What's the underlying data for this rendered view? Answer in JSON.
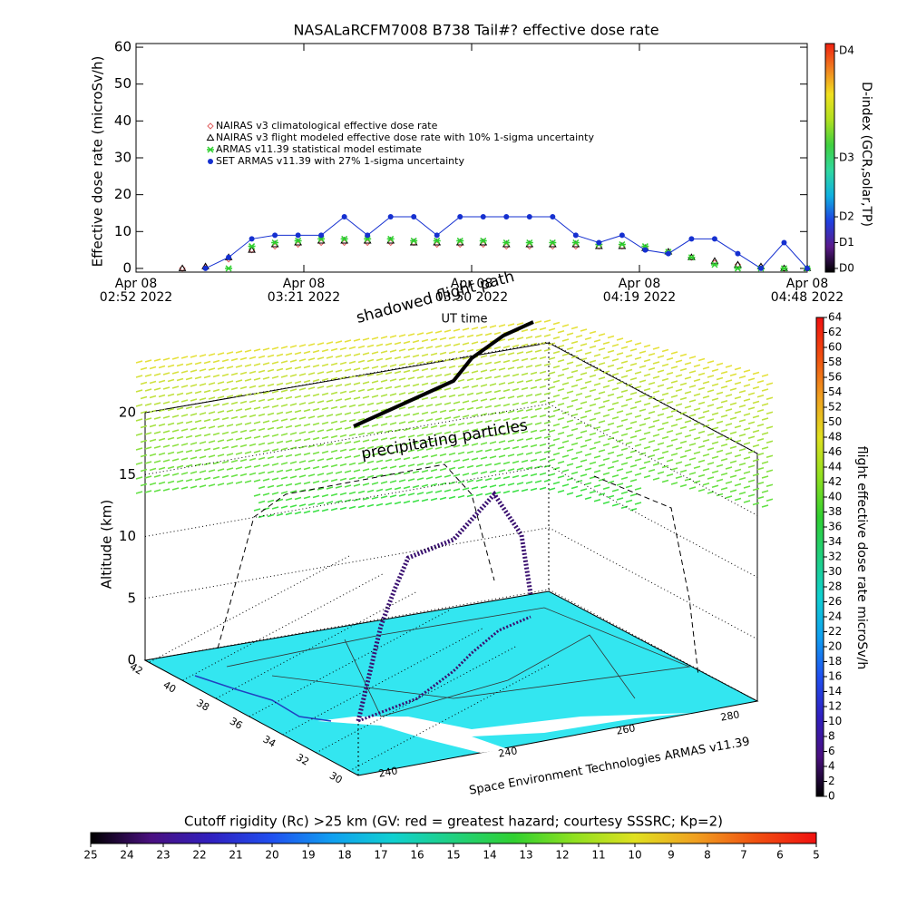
{
  "chart_data": [
    {
      "type": "line",
      "title": "NASALaRCFM7008  B738 Tail#? effective dose rate",
      "x_label": "UT time",
      "y_label": "Effective dose rate (microSv/h)",
      "x": [
        "2022-04-08 03:00",
        "2022-04-08 03:04",
        "2022-04-08 03:08",
        "2022-04-08 03:12",
        "2022-04-08 03:16",
        "2022-04-08 03:20",
        "2022-04-08 03:24",
        "2022-04-08 03:28",
        "2022-04-08 03:32",
        "2022-04-08 03:36",
        "2022-04-08 03:40",
        "2022-04-08 03:44",
        "2022-04-08 03:48",
        "2022-04-08 03:52",
        "2022-04-08 03:56",
        "2022-04-08 04:00",
        "2022-04-08 04:04",
        "2022-04-08 04:08",
        "2022-04-08 04:12",
        "2022-04-08 04:16",
        "2022-04-08 04:20",
        "2022-04-08 04:24",
        "2022-04-08 04:28",
        "2022-04-08 04:32",
        "2022-04-08 04:36",
        "2022-04-08 04:40",
        "2022-04-08 04:44",
        "2022-04-08 04:48"
      ],
      "series": [
        {
          "name": "NAIRAS v3 climatological effective dose rate",
          "color": "#e06060",
          "marker": "diamond",
          "values": [
            0,
            0.3,
            2.5,
            5,
            6,
            6.5,
            7,
            7,
            7,
            7,
            7,
            6.5,
            6.5,
            6.5,
            6,
            6,
            6,
            6,
            6,
            6,
            5.5,
            4.5,
            3,
            1.5,
            1,
            0.5,
            0,
            0
          ]
        },
        {
          "name": "NAIRAS v3 flight modeled effective dose rate with 10% 1-sigma uncertainty",
          "color": "#000000",
          "marker": "triangle",
          "values": [
            0,
            0.5,
            3,
            5,
            6.5,
            7,
            7.5,
            7.5,
            7.5,
            7.5,
            7,
            7,
            7,
            7,
            6.5,
            6.5,
            6.5,
            6.5,
            6,
            6,
            5.5,
            4.5,
            3,
            2,
            1,
            0.5,
            0,
            0
          ]
        },
        {
          "name": "ARMAS v11.39 statistical model estimate",
          "color": "#30d030",
          "marker": "star",
          "values": [
            null,
            null,
            0,
            6,
            7,
            7.5,
            8,
            8,
            8,
            8,
            7.5,
            7.5,
            7.5,
            7.5,
            7,
            7,
            7,
            7,
            6.5,
            6.5,
            6,
            4.5,
            3,
            1,
            0,
            0,
            0,
            0
          ]
        },
        {
          "name": "SET ARMAS v11.39 with 27% 1-sigma uncertainty",
          "color": "#1530d0",
          "marker": "circle",
          "line": true,
          "values": [
            null,
            0,
            3,
            8,
            9,
            9,
            9,
            14,
            9,
            14,
            14,
            9,
            14,
            14,
            14,
            14,
            14,
            9,
            7,
            9,
            5,
            4,
            8,
            8,
            4,
            0,
            7,
            0
          ]
        }
      ],
      "xlim": [
        "2022-04-08 02:52",
        "2022-04-08 04:48"
      ],
      "xticks": [
        {
          "value": "2022-04-08 02:52",
          "label": "Apr 08\n02:52 2022"
        },
        {
          "value": "2022-04-08 03:21",
          "label": "Apr 08\n03:21 2022"
        },
        {
          "value": "2022-04-08 03:50",
          "label": "Apr 08\n03:50 2022"
        },
        {
          "value": "2022-04-08 04:19",
          "label": "Apr 08\n04:19 2022"
        },
        {
          "value": "2022-04-08 04:48",
          "label": "Apr 08\n04:48 2022"
        }
      ],
      "ylim": [
        -1,
        61
      ],
      "yticks": [
        0,
        10,
        20,
        30,
        40,
        50,
        60
      ]
    },
    {
      "type": "colorbar-v",
      "title": "D-index (GCR,solar,TP)",
      "ylim": [
        -1,
        61
      ],
      "yticks": [
        {
          "value": 0,
          "label": "D0"
        },
        {
          "value": 7,
          "label": "D1"
        },
        {
          "value": 14,
          "label": "D2"
        },
        {
          "value": 30,
          "label": "D3"
        },
        {
          "value": 59,
          "label": "D4"
        }
      ],
      "colors": [
        "#000000",
        "#5a1a8a",
        "#2040e0",
        "#10b0e0",
        "#30d8a0",
        "#40d040",
        "#b0e020",
        "#f0e020",
        "#f08020",
        "#f02010"
      ]
    },
    {
      "type": "surface3d",
      "annotations": [
        "shadowed flight path",
        "precipitating particles"
      ],
      "z_label": "Altitude (km)",
      "credit": "Space Environment Technologies ARMAS v11.39",
      "zlim": [
        0,
        20
      ],
      "zticks": [
        0,
        5,
        10,
        15,
        20
      ],
      "latlim": [
        42,
        30
      ],
      "latticks": [
        42,
        40,
        38,
        36,
        34,
        32,
        30
      ],
      "lonticks": [
        240,
        240,
        260,
        280
      ]
    },
    {
      "type": "colorbar-v",
      "title": "flight effective dose rate microSv/h",
      "ylim": [
        0,
        64
      ],
      "yticks": [
        0,
        2,
        4,
        6,
        8,
        10,
        12,
        14,
        16,
        18,
        20,
        22,
        24,
        26,
        28,
        30,
        32,
        34,
        36,
        38,
        40,
        42,
        44,
        46,
        48,
        50,
        52,
        54,
        56,
        58,
        60,
        62,
        64
      ],
      "colors": [
        "#000000",
        "#4a1080",
        "#3020c0",
        "#2050f0",
        "#10a0f0",
        "#10d0d0",
        "#20d080",
        "#30d030",
        "#90e020",
        "#e0e020",
        "#f0a020",
        "#f05010",
        "#f01010"
      ]
    },
    {
      "type": "colorbar-h",
      "title": "Cutoff rigidity (Rc) >25 km (GV: red = greatest hazard; courtesy SSSRC; Kp=2)",
      "xlim": [
        25,
        5
      ],
      "xticks": [
        25,
        24,
        23,
        22,
        21,
        20,
        19,
        18,
        17,
        16,
        15,
        14,
        13,
        12,
        11,
        10,
        9,
        8,
        7,
        6,
        5
      ],
      "colors": [
        "#000000",
        "#4a1080",
        "#3020c0",
        "#2050f0",
        "#10a0f0",
        "#10d0d0",
        "#20d080",
        "#30d030",
        "#90e020",
        "#e0e020",
        "#f0a020",
        "#f05010",
        "#f01010"
      ]
    }
  ]
}
